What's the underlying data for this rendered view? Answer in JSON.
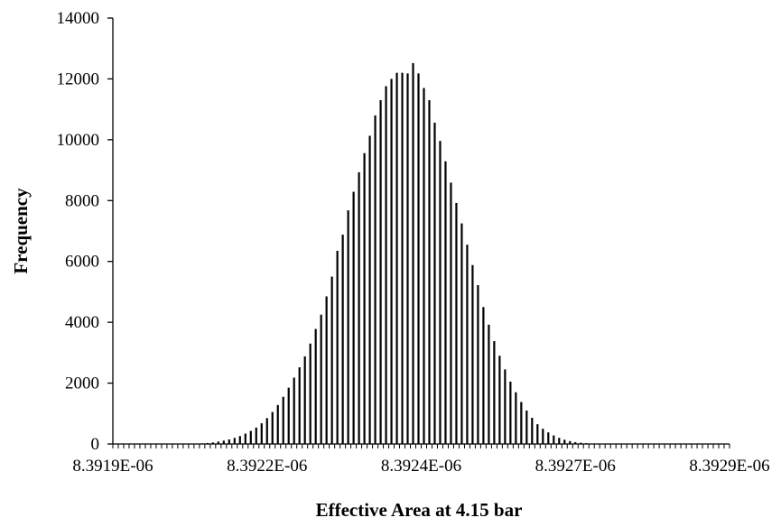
{
  "chart_data": {
    "type": "bar",
    "title": "",
    "xlabel": "Effective Area at 4.15 bar",
    "ylabel": "Frequency",
    "ylim": [
      0,
      14000
    ],
    "yticks": [
      "0",
      "2000",
      "4000",
      "6000",
      "8000",
      "10000",
      "12000",
      "14000"
    ],
    "xticks": [
      "8.3919E-06",
      "8.3922E-06",
      "8.3924E-06",
      "8.3927E-06",
      "8.3929E-06"
    ],
    "grid": false,
    "legend": "none",
    "bar_color": "#000000",
    "x_start": 8.3919e-06,
    "x_step": 2.5e-11,
    "values": [
      0,
      0,
      0,
      0,
      0,
      0,
      0,
      0,
      0,
      0,
      0,
      0,
      0,
      0,
      5,
      10,
      20,
      30,
      50,
      80,
      110,
      150,
      200,
      260,
      340,
      430,
      540,
      680,
      850,
      1050,
      1280,
      1550,
      1850,
      2180,
      2520,
      2880,
      3300,
      3780,
      4250,
      4850,
      5500,
      6350,
      6880,
      7680,
      8290,
      8930,
      9560,
      10130,
      10800,
      11300,
      11760,
      12000,
      12200,
      12200,
      12180,
      12520,
      12180,
      11700,
      11300,
      10560,
      9960,
      9290,
      8590,
      7920,
      7250,
      6550,
      5880,
      5220,
      4500,
      3920,
      3380,
      2900,
      2450,
      2050,
      1700,
      1380,
      1100,
      860,
      650,
      500,
      380,
      280,
      200,
      140,
      95,
      60,
      40,
      25,
      15,
      8,
      5,
      3,
      2,
      1,
      0,
      0,
      0,
      0,
      0,
      0,
      0,
      0,
      0,
      0,
      0,
      0,
      0,
      0,
      0,
      0,
      0,
      0,
      0,
      0
    ]
  }
}
